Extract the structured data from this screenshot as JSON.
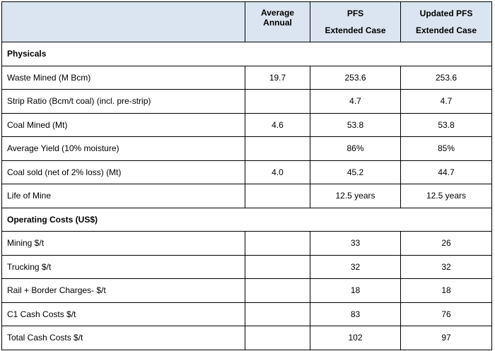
{
  "header": {
    "col1": "",
    "col2": "Average Annual",
    "col3_line1": "PFS",
    "col3_line2": "Extended Case",
    "col4_line1": "Updated PFS",
    "col4_line2": "Extended Case"
  },
  "sections": {
    "physicals": "Physicals",
    "operating_costs": "Operating Costs (US$)"
  },
  "rows": [
    {
      "label": "Waste Mined (M Bcm)",
      "avg": "19.7",
      "pfs": "253.6",
      "updated": "253.6"
    },
    {
      "label": "Strip Ratio (Bcm/t coal) (incl. pre-strip)",
      "avg": "",
      "pfs": "4.7",
      "updated": "4.7"
    },
    {
      "label": "Coal Mined (Mt)",
      "avg": "4.6",
      "pfs": "53.8",
      "updated": "53.8"
    },
    {
      "label": "Average Yield (10% moisture)",
      "avg": "",
      "pfs": "86%",
      "updated": "85%"
    },
    {
      "label": "Coal sold (net of 2% loss) (Mt)",
      "avg": "4.0",
      "pfs": "45.2",
      "updated": "44.7"
    },
    {
      "label": "Life of Mine",
      "avg": "",
      "pfs": "12.5 years",
      "updated": "12.5 years"
    },
    {
      "label": "Mining $/t",
      "avg": "",
      "pfs": "33",
      "updated": "26"
    },
    {
      "label": "Trucking $/t",
      "avg": "",
      "pfs": "32",
      "updated": "32"
    },
    {
      "label": "Rail + Border Charges- $/t",
      "avg": "",
      "pfs": "18",
      "updated": "18"
    },
    {
      "label": "C1 Cash Costs $/t",
      "avg": "",
      "pfs": "83",
      "updated": "76"
    },
    {
      "label": "Total Cash Costs $/t",
      "avg": "",
      "pfs": "102",
      "updated": "97"
    }
  ]
}
